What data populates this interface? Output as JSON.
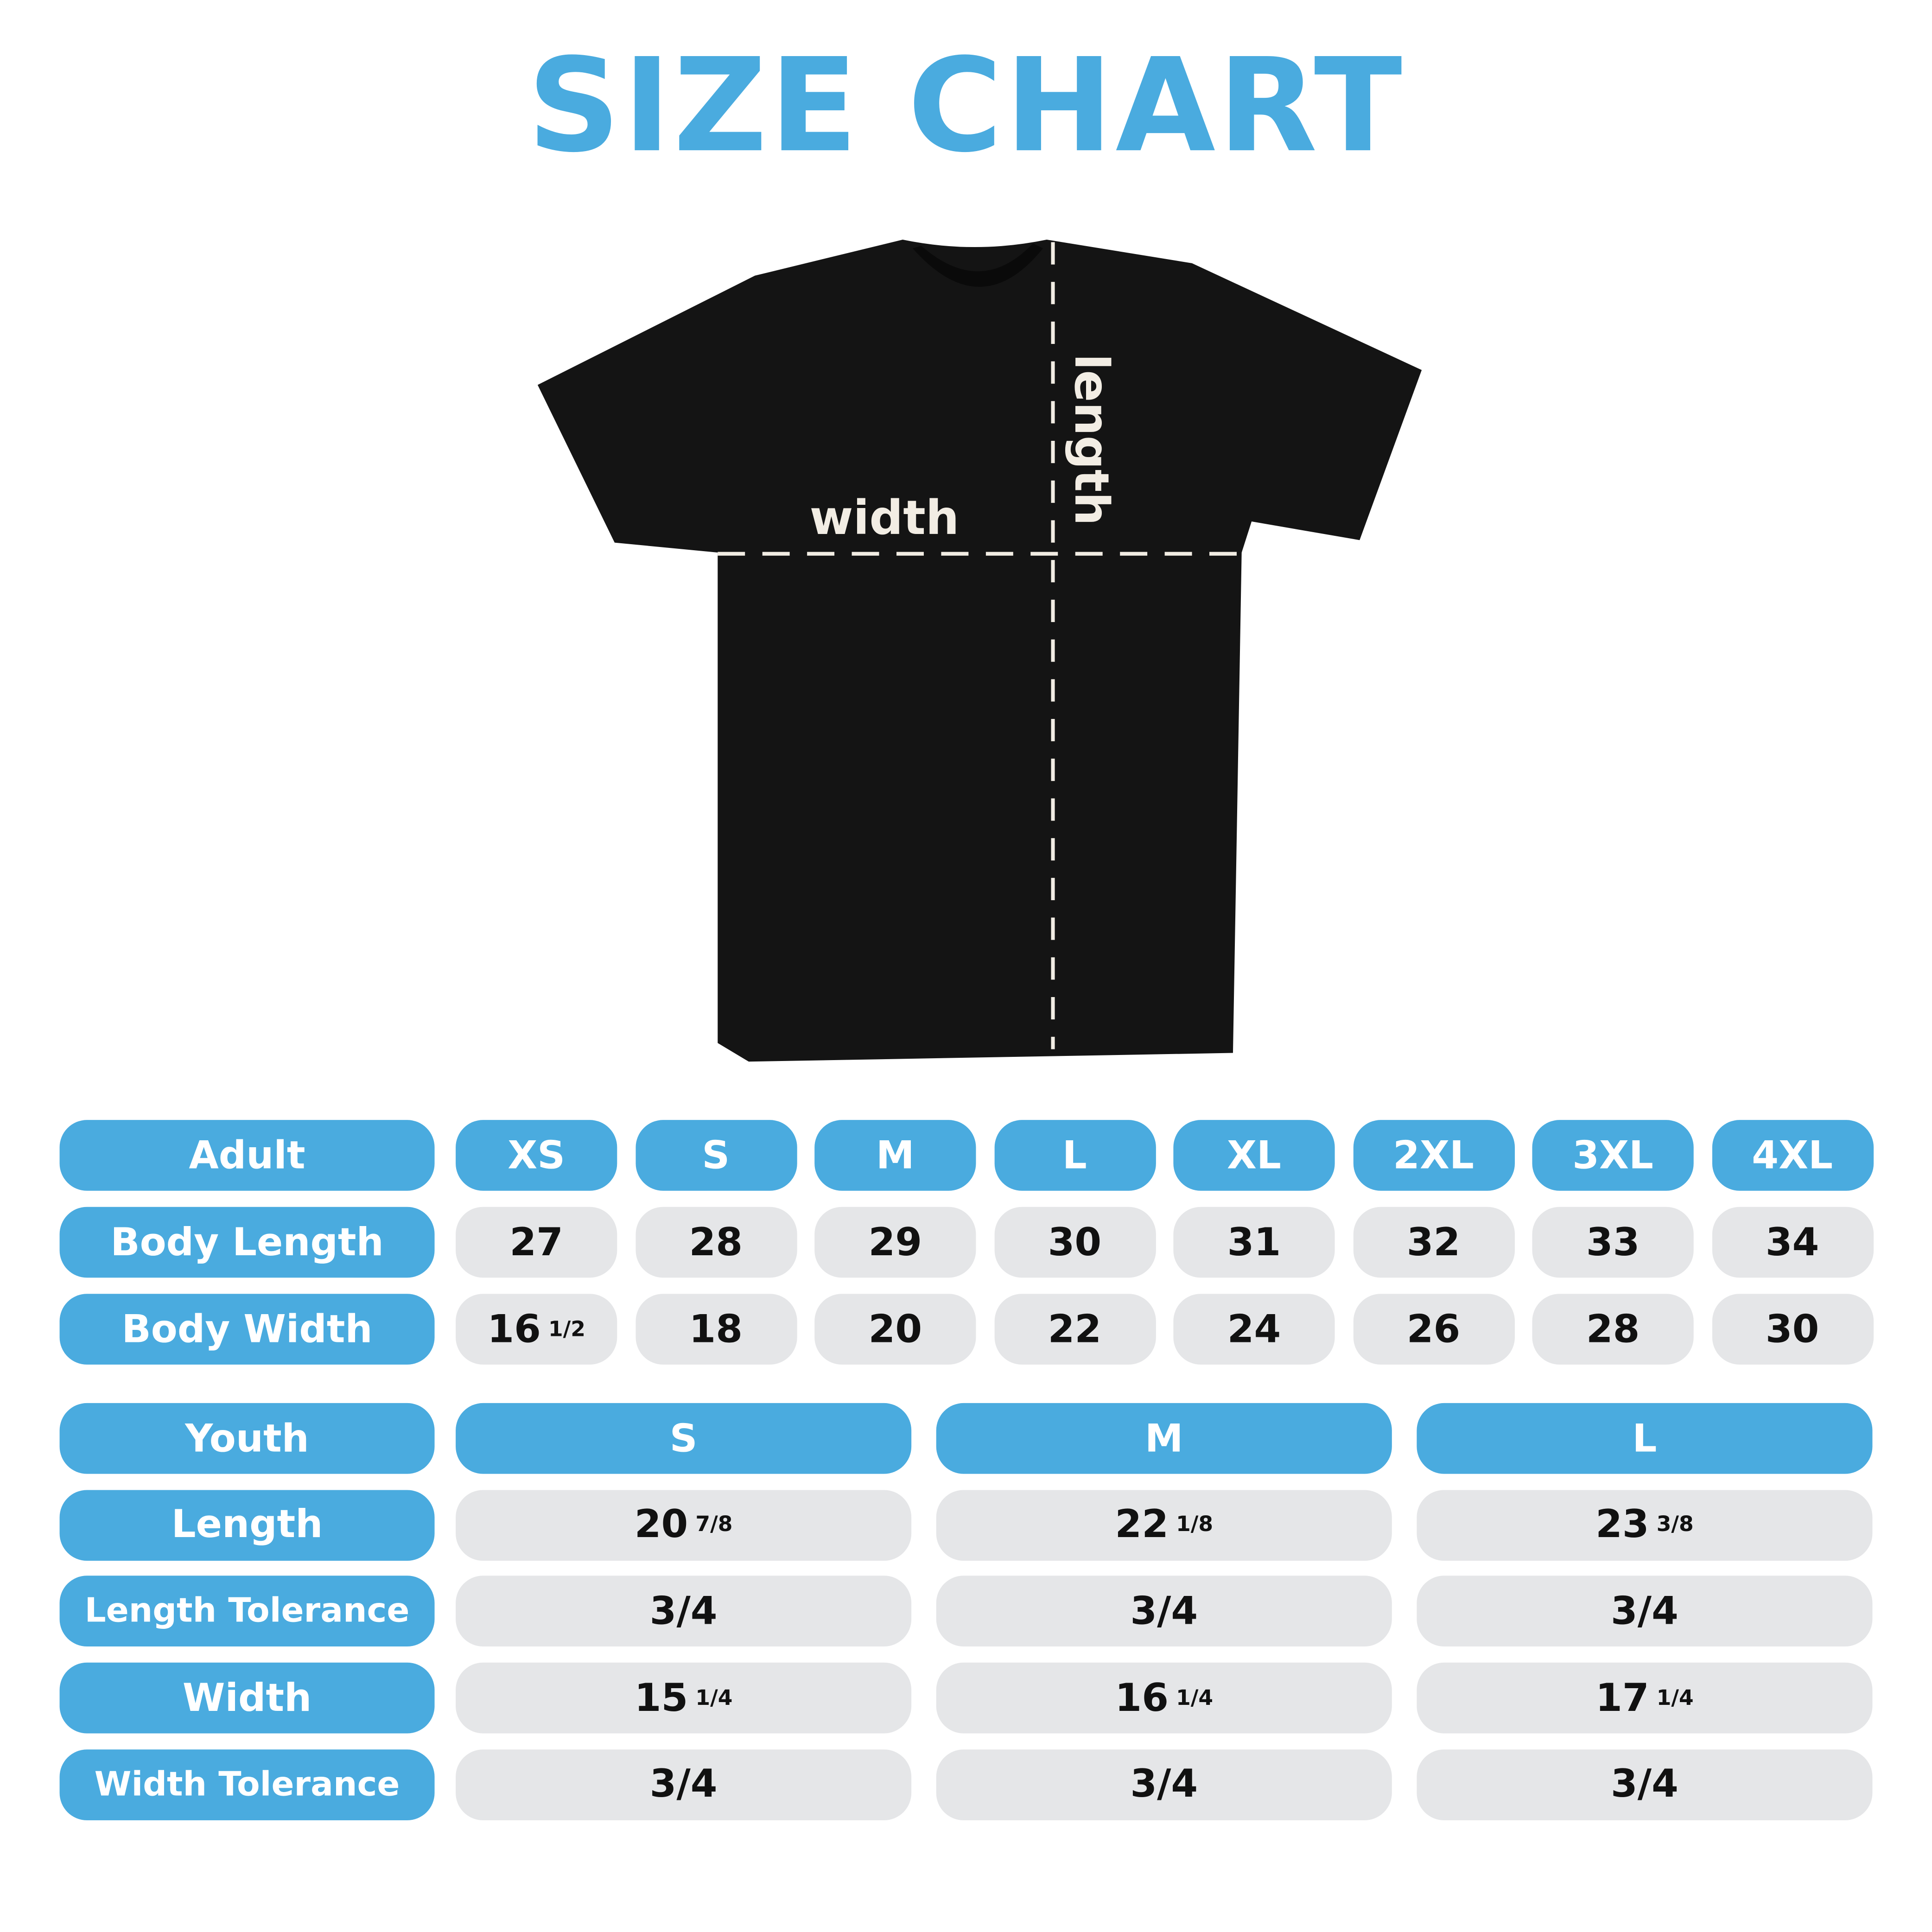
{
  "title": "SIZE CHART",
  "diagram": {
    "width_label": "width",
    "length_label": "length",
    "shirt_color": "#141414"
  },
  "colors": {
    "accent": "#4aabdf",
    "cell": "#e5e6e8"
  },
  "adult": {
    "header": "Adult",
    "sizes": [
      "XS",
      "S",
      "M",
      "L",
      "XL",
      "2XL",
      "3XL",
      "4XL"
    ],
    "rows": [
      {
        "label": "Body Length",
        "values": [
          {
            "n": "27"
          },
          {
            "n": "28"
          },
          {
            "n": "29"
          },
          {
            "n": "30"
          },
          {
            "n": "31"
          },
          {
            "n": "32"
          },
          {
            "n": "33"
          },
          {
            "n": "34"
          }
        ]
      },
      {
        "label": "Body Width",
        "values": [
          {
            "n": "16",
            "f": "1/2"
          },
          {
            "n": "18"
          },
          {
            "n": "20"
          },
          {
            "n": "22"
          },
          {
            "n": "24"
          },
          {
            "n": "26"
          },
          {
            "n": "28"
          },
          {
            "n": "30"
          }
        ]
      }
    ]
  },
  "youth": {
    "header": "Youth",
    "sizes": [
      "S",
      "M",
      "L"
    ],
    "rows": [
      {
        "label": "Length",
        "values": [
          {
            "n": "20",
            "f": "7/8"
          },
          {
            "n": "22",
            "f": "1/8"
          },
          {
            "n": "23",
            "f": "3/8"
          }
        ]
      },
      {
        "label": "Length Tolerance",
        "values": [
          {
            "n": "3/4"
          },
          {
            "n": "3/4"
          },
          {
            "n": "3/4"
          }
        ]
      },
      {
        "label": "Width",
        "values": [
          {
            "n": "15",
            "f": "1/4"
          },
          {
            "n": "16",
            "f": "1/4"
          },
          {
            "n": "17",
            "f": "1/4"
          }
        ]
      },
      {
        "label": "Width Tolerance",
        "values": [
          {
            "n": "3/4"
          },
          {
            "n": "3/4"
          },
          {
            "n": "3/4"
          }
        ]
      }
    ]
  }
}
